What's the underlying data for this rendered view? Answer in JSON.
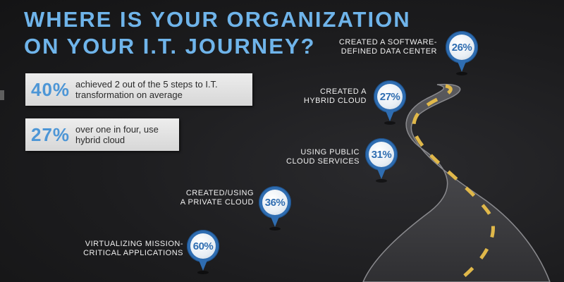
{
  "headline": {
    "line1": "WHERE IS YOUR ORGANIZATION",
    "line2": "ON YOUR I.T. JOURNEY?"
  },
  "stats": [
    {
      "percent": "40%",
      "text": "achieved 2 out of the 5 steps to I.T. transformation on average"
    },
    {
      "percent": "27%",
      "text": "over one in four, use hybrid cloud"
    }
  ],
  "milestones": [
    {
      "label": "CREATED A SOFTWARE-\nDEFINED DATA CENTER",
      "percent": "26%"
    },
    {
      "label": "CREATED A\nHYBRID CLOUD",
      "percent": "27%"
    },
    {
      "label": "USING PUBLIC\nCLOUD SERVICES",
      "percent": "31%"
    },
    {
      "label": "CREATED/USING\nA PRIVATE CLOUD",
      "percent": "36%"
    },
    {
      "label": "VIRTUALIZING MISSION-\nCRITICAL APPLICATIONS",
      "percent": "60%"
    }
  ],
  "colors": {
    "accent_blue": "#6fb4ea",
    "pin_blue": "#2f6db1",
    "background": "#1b1b1d",
    "road": "#3a3a3d",
    "road_line": "#e0b84a"
  }
}
